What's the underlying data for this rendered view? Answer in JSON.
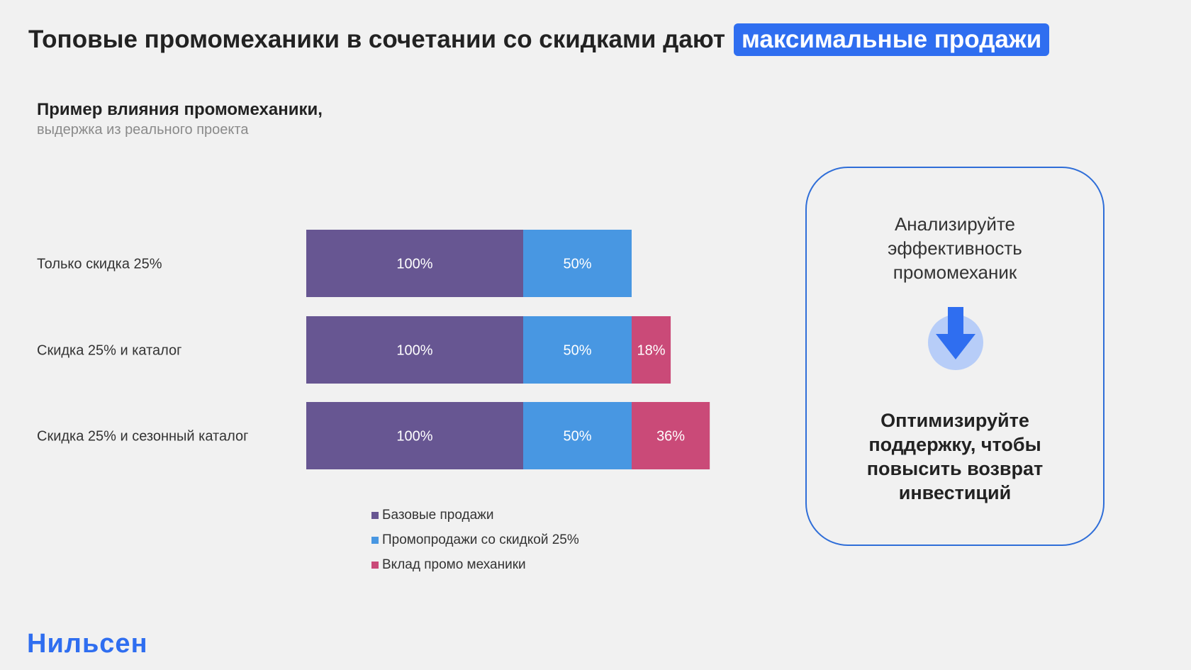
{
  "headline": {
    "text": "Топовые промомеханики в сочетании со скидками дают",
    "highlight": "максимальные продажи"
  },
  "chart_data": {
    "type": "bar",
    "orientation": "horizontal",
    "stacked": true,
    "title": "Пример влияния промомеханики,",
    "subtitle": "выдержка из реального проекта",
    "categories": [
      "Только скидка 25%",
      "Скидка 25% и каталог",
      "Скидка 25% и сезонный каталог"
    ],
    "series": [
      {
        "name": "Базовые продажи",
        "values": [
          100,
          100,
          100
        ],
        "labels": [
          "100%",
          "100%",
          "100%"
        ],
        "color": "#675692"
      },
      {
        "name": "Промопродажи со скидкой 25%",
        "values": [
          50,
          50,
          50
        ],
        "labels": [
          "50%",
          "50%",
          "50%"
        ],
        "color": "#4897e2"
      },
      {
        "name": "Вклад промо механики",
        "values": [
          0,
          18,
          36
        ],
        "labels": [
          "",
          "18%",
          "36%"
        ],
        "color": "#ca4a78"
      }
    ],
    "legend_position": "bottom",
    "grid": false
  },
  "side_card": {
    "top_text": "Анализируйте эффективность промомеханик",
    "icon": "arrow-down-icon",
    "bottom_text": "Оптимизируйте поддержку, чтобы повысить возврат инвестиций",
    "border_color": "#2f6ed8",
    "icon_color": "#2f6ef0"
  },
  "logo": "Нильсен",
  "colors": {
    "background": "#f1f1f1",
    "accent": "#2f6ef0"
  }
}
